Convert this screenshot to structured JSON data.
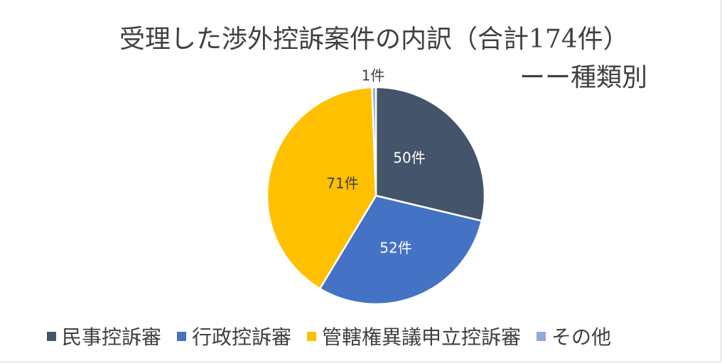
{
  "chart_data": {
    "type": "pie",
    "title": "受理した渉外控訴案件の内訳（合計174件）",
    "subtitle": "ーー種類別",
    "categories": [
      "民事控訴審",
      "行政控訴審",
      "管轄権異議申立控訴審",
      "その他"
    ],
    "values": [
      50,
      52,
      71,
      1
    ],
    "data_labels": [
      "50件",
      "52件",
      "71件",
      "1件"
    ],
    "colors": [
      "#44546a",
      "#4472c4",
      "#ffc000",
      "#8faadc"
    ],
    "label_colors": [
      "#ffffff",
      "#ffffff",
      "#404040",
      "#404040"
    ],
    "legend_position": "bottom"
  }
}
